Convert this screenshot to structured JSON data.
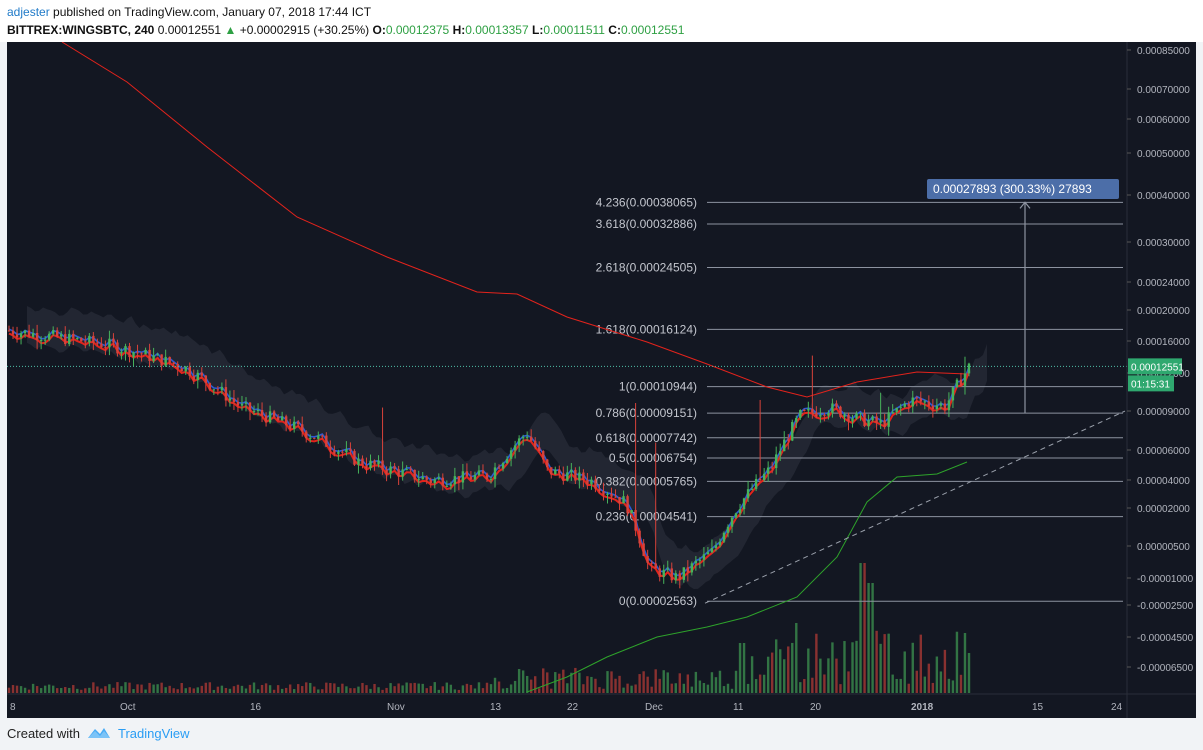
{
  "header": {
    "publisher": "adjester",
    "published_text": " published on TradingView.com, January 07, 2018 17:44 ICT",
    "symbol": "BITTREX:WINGSBTC, 240",
    "last": "0.00012551",
    "change": "+0.00002915 (+30.25%)",
    "o_label": "O:",
    "o_val": "0.00012375",
    "h_label": "H:",
    "h_val": "0.00013357",
    "l_label": "L:",
    "l_val": "0.00011511",
    "c_label": "C:",
    "c_val": "0.00012551"
  },
  "footer": {
    "created": "Created with",
    "brand": "TradingView"
  },
  "colors": {
    "bg": "#131722",
    "ma_red": "#e3231c",
    "green_line": "#2ea32b",
    "up": "#47b35b",
    "down": "#d8423a",
    "fib_line": "#8d93a0",
    "price_label": "#2fa86f",
    "measure_box": "#4c6ea8"
  },
  "chart_data": {
    "type": "candlestick",
    "symbol": "BITTREX:WINGSBTC",
    "interval": "240",
    "y_scale": "log",
    "y_ticks": [
      "0.00085000",
      "0.00070000",
      "0.00060000",
      "0.00050000",
      "0.00040000",
      "0.00030000",
      "0.00024000",
      "0.00020000",
      "0.00016000",
      "0.00012000",
      "0.00009000",
      "0.00006000",
      "0.00004000",
      "0.00002000",
      "0.00000500",
      "-0.00001000",
      "-0.00002500",
      "-0.00004500",
      "-0.00006500"
    ],
    "x_ticks": [
      "8",
      "Oct",
      "16",
      "Nov",
      "13",
      "22",
      "Dec",
      "11",
      "20",
      "2018",
      "15",
      "24"
    ],
    "fibonacci": [
      {
        "label": "4.236(0.00038065)",
        "value": 0.00038065
      },
      {
        "label": "3.618(0.00032886)",
        "value": 0.00032886
      },
      {
        "label": "2.618(0.00024505)",
        "value": 0.00024505
      },
      {
        "label": "1.618(0.00016124)",
        "value": 0.00016124
      },
      {
        "label": "1(0.00010944)",
        "value": 0.00010944
      },
      {
        "label": "0.786(0.00009151)",
        "value": 9.151e-05
      },
      {
        "label": "0.618(0.00007742)",
        "value": 7.742e-05
      },
      {
        "label": "0.5(0.00006754)",
        "value": 6.754e-05
      },
      {
        "label": "0.382(0.00005765)",
        "value": 5.765e-05
      },
      {
        "label": "0.236(0.00004541)",
        "value": 4.541e-05
      },
      {
        "label": "0(0.00002563)",
        "value": 2.563e-05
      }
    ],
    "last_price": "0.00012551",
    "countdown": "01:15:31",
    "measure_label": "0.00027893 (300.33%) 27893",
    "ohlc_last": {
      "open": 0.00012375,
      "high": 0.00013357,
      "low": 0.00011511,
      "close": 0.00012551
    }
  }
}
